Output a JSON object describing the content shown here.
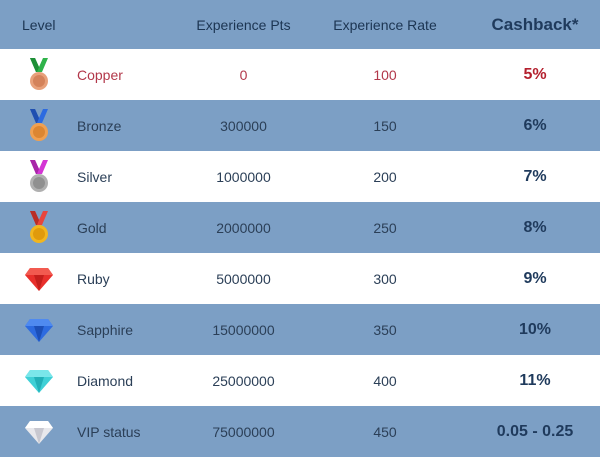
{
  "table": {
    "headers": {
      "level": "Level",
      "experience_pts": "Experience Pts",
      "experience_rate": "Experience Rate",
      "cashback": "Cashback*"
    },
    "rows": [
      {
        "name": "Copper",
        "pts": "0",
        "rate": "100",
        "cashback": "5%",
        "icon": "copper-medal-icon",
        "color": "#e8a07a"
      },
      {
        "name": "Bronze",
        "pts": "300000",
        "rate": "150",
        "cashback": "6%",
        "icon": "bronze-medal-icon",
        "color": "#f0a050"
      },
      {
        "name": "Silver",
        "pts": "1000000",
        "rate": "200",
        "cashback": "7%",
        "icon": "silver-medal-icon",
        "color": "#a8a8a8"
      },
      {
        "name": "Gold",
        "pts": "2000000",
        "rate": "250",
        "cashback": "8%",
        "icon": "gold-medal-icon",
        "color": "#f2b61e"
      },
      {
        "name": "Ruby",
        "pts": "5000000",
        "rate": "300",
        "cashback": "9%",
        "icon": "ruby-gem-icon",
        "color": "#e8302c"
      },
      {
        "name": "Sapphire",
        "pts": "15000000",
        "rate": "350",
        "cashback": "10%",
        "icon": "sapphire-gem-icon",
        "color": "#2d6be0"
      },
      {
        "name": "Diamond",
        "pts": "25000000",
        "rate": "400",
        "cashback": "11%",
        "icon": "diamond-gem-icon",
        "color": "#3fd0d6"
      },
      {
        "name": "VIP status",
        "pts": "75000000",
        "rate": "450",
        "cashback": "0.05 - 0.25",
        "icon": "vip-gem-icon",
        "color": "#e8e8ec"
      }
    ]
  },
  "colors": {
    "header_bg": "#7c9fc5",
    "row_blue_bg": "#7c9fc5",
    "row_white_bg": "#ffffff",
    "text_dark": "#2b3f57",
    "copper_text": "#b2384a",
    "copper_cashback": "#b4202e"
  }
}
